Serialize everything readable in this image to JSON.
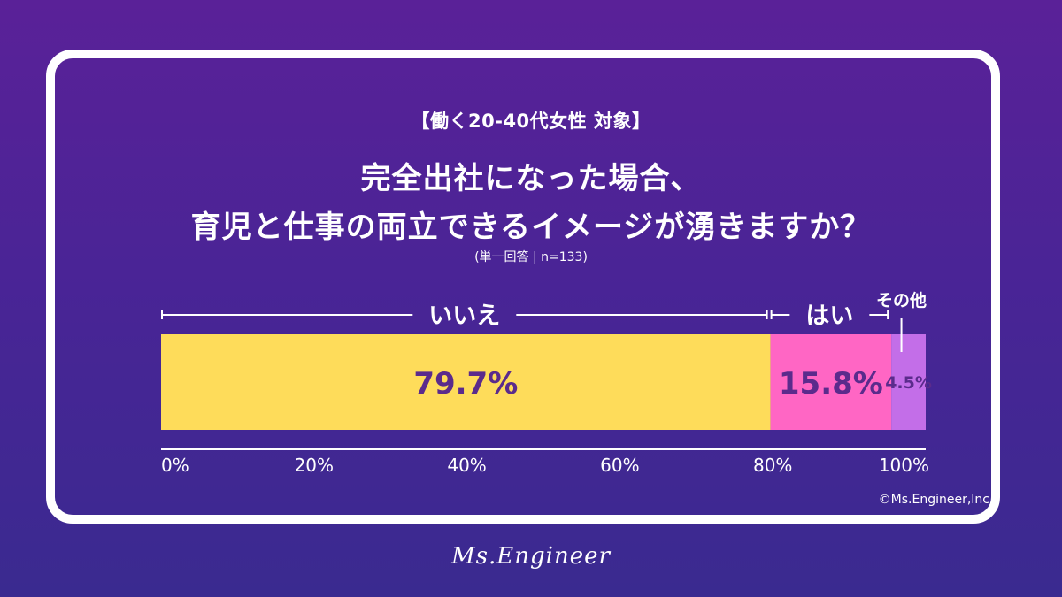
{
  "header": {
    "subtitle": "【働く20-40代女性 対象】",
    "title_line1": "完全出社になった場合、",
    "title_line2": "育児と仕事の両立できるイメージが湧きますか？",
    "note": "(単一回答 | n=133)"
  },
  "chart_data": {
    "type": "bar",
    "orientation": "horizontal-stacked-100",
    "series": [
      {
        "name": "いいえ",
        "value": 79.7,
        "label": "79.7%",
        "color": "#fedc5a",
        "label_color": "#5b2b8c"
      },
      {
        "name": "はい",
        "value": 15.8,
        "label": "15.8%",
        "color": "#ff66c4",
        "label_color": "#5b2b8c"
      },
      {
        "name": "その他",
        "value": 4.5,
        "label": "4.5%",
        "color": "#c36ee8",
        "label_color": "#5b2b8c"
      }
    ],
    "x_ticks": [
      "0%",
      "20%",
      "40%",
      "60%",
      "80%",
      "100%"
    ],
    "xlim": [
      0,
      100
    ],
    "legend": "inline-above"
  },
  "footer": {
    "copyright": "©Ms.Engineer,Inc",
    "brand": "Ms.Engineer"
  },
  "colors": {
    "background_top": "#5a2198",
    "background_bottom": "#3a2a90",
    "card_border": "#ffffff"
  }
}
